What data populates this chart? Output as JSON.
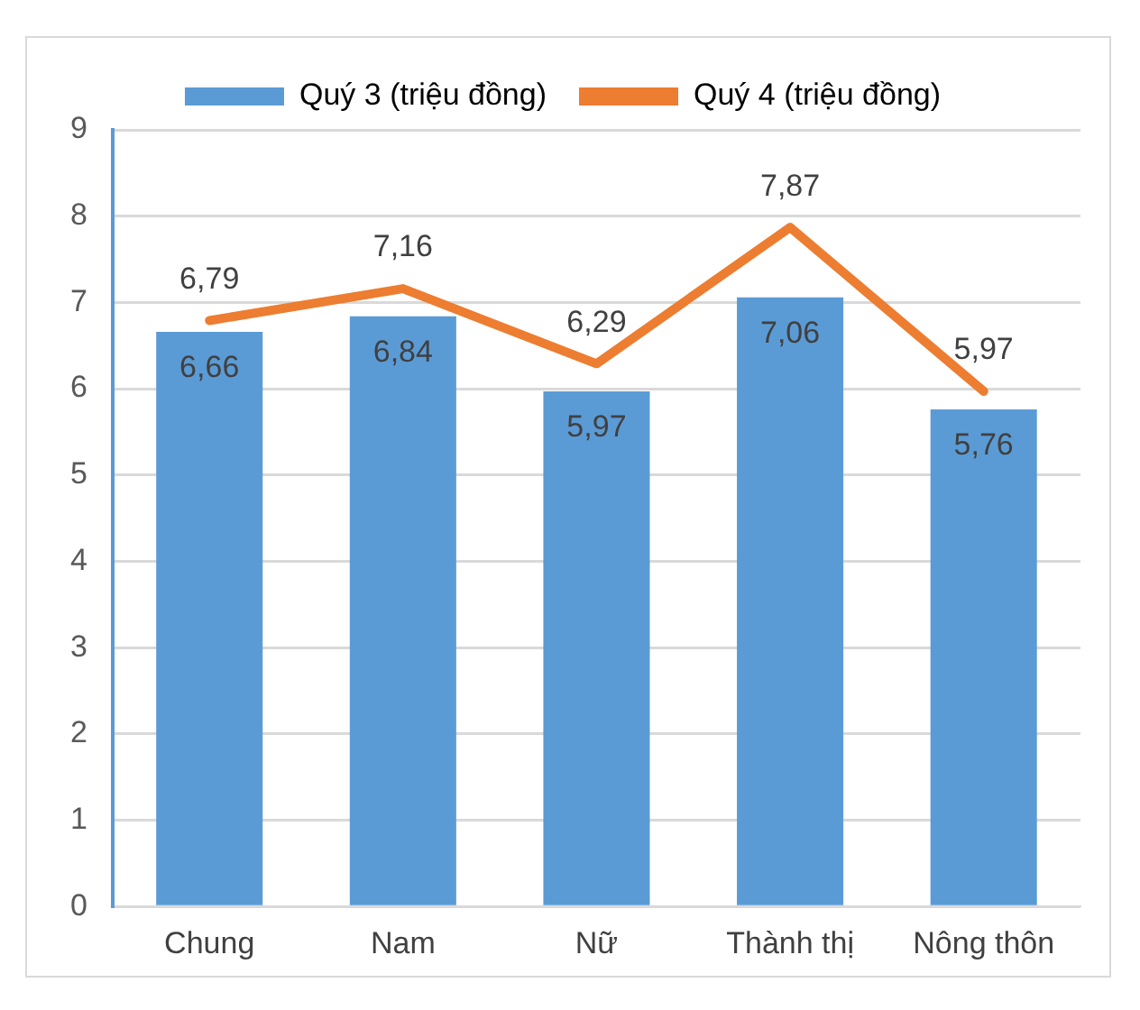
{
  "chart_data": {
    "type": "bar",
    "categories": [
      "Chung",
      "Nam",
      "Nữ",
      "Thành thị",
      "Nông thôn"
    ],
    "series": [
      {
        "name": "Quý 3 (triệu đồng)",
        "color": "#5b9bd5",
        "values": [
          6.66,
          6.84,
          5.97,
          7.06,
          5.76
        ],
        "value_labels": [
          "6,66",
          "6,84",
          "5,97",
          "7,06",
          "5,76"
        ]
      },
      {
        "name": "Quý 4 (triệu đồng)",
        "type": "line",
        "color": "#ed7d31",
        "values": [
          6.79,
          7.16,
          6.29,
          7.87,
          5.97
        ],
        "value_labels": [
          "6,79",
          "7,16",
          "6,29",
          "7,87",
          "5,97"
        ]
      }
    ],
    "ylim": [
      0,
      9
    ],
    "yticks": [
      0,
      1,
      2,
      3,
      4,
      5,
      6,
      7,
      8,
      9
    ],
    "grid": "y",
    "legend": "top",
    "marker": "none"
  }
}
